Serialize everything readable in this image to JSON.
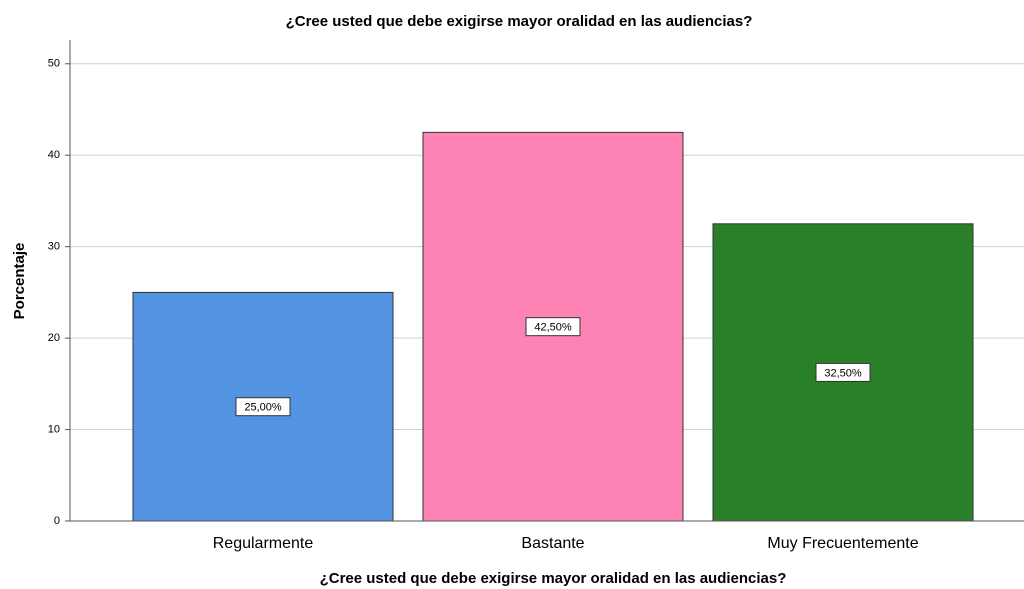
{
  "chart_data": {
    "type": "bar",
    "title": "¿Cree usted que debe exigirse mayor oralidad en las audiencias?",
    "x_label": "¿Cree usted que debe exigirse mayor oralidad en las audiencias?",
    "y_label": "Porcentaje",
    "categories": [
      "Regularmente",
      "Bastante",
      "Muy Frecuentemente"
    ],
    "values": [
      25,
      42.5,
      32.5
    ],
    "value_labels": [
      "25,00%",
      "42,50%",
      "32,50%"
    ],
    "colors": [
      "#5294e2",
      "#fd83b5",
      "#2a8028"
    ],
    "ylim": [
      0,
      52.6
    ],
    "yticks": [
      0,
      10,
      20,
      30,
      40,
      50
    ],
    "grid": true
  }
}
